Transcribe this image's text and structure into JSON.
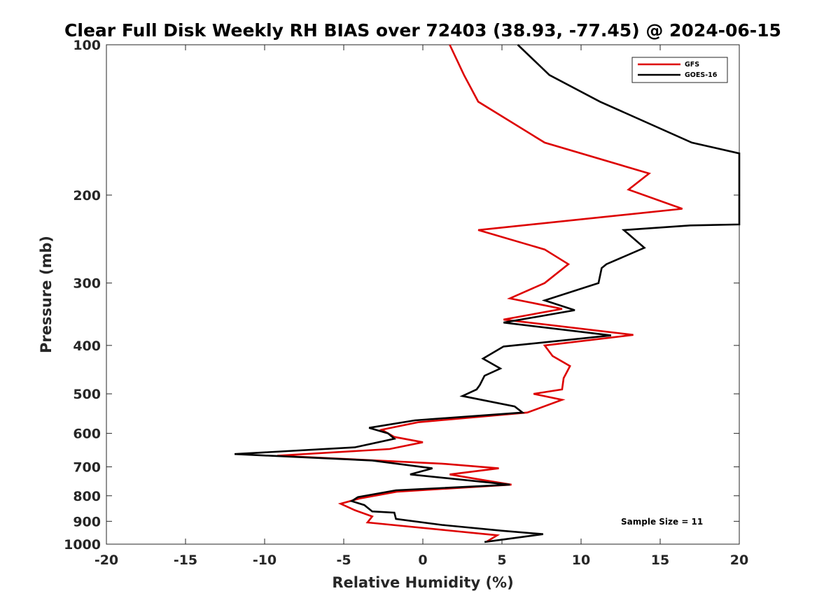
{
  "chart_data": {
    "type": "line",
    "title": "Clear Full Disk Weekly RH BIAS over 72403 (38.93, -77.45) @ 2024-06-15",
    "xlabel": "Relative Humidity (%)",
    "ylabel": "Pressure (mb)",
    "xlim": [
      -20,
      20
    ],
    "ylim": [
      1000,
      100
    ],
    "y_scale": "log",
    "y_reversed": true,
    "x_ticks": [
      -20,
      -15,
      -10,
      -5,
      0,
      5,
      10,
      15,
      20
    ],
    "y_ticks": [
      100,
      200,
      300,
      400,
      500,
      600,
      700,
      800,
      900,
      1000
    ],
    "grid": false,
    "legend_position": "top-right",
    "annotation": "Sample Size = 11",
    "series": [
      {
        "name": "GFS",
        "color": "#dd0000",
        "points": [
          [
            1.7,
            100
          ],
          [
            2.6,
            115
          ],
          [
            3.5,
            130
          ],
          [
            7.7,
            157
          ],
          [
            14.3,
            181
          ],
          [
            13.0,
            195
          ],
          [
            16.4,
            213
          ],
          [
            3.5,
            235
          ],
          [
            7.7,
            257
          ],
          [
            9.2,
            275
          ],
          [
            7.7,
            300
          ],
          [
            5.5,
            322
          ],
          [
            8.8,
            338
          ],
          [
            5.1,
            355
          ],
          [
            13.3,
            381
          ],
          [
            7.7,
            400
          ],
          [
            8.2,
            420
          ],
          [
            9.3,
            440
          ],
          [
            8.9,
            465
          ],
          [
            8.8,
            490
          ],
          [
            7.0,
            500
          ],
          [
            8.8,
            514
          ],
          [
            6.6,
            545
          ],
          [
            -0.3,
            570
          ],
          [
            -2.6,
            590
          ],
          [
            -1.8,
            610
          ],
          [
            0.0,
            625
          ],
          [
            -2.1,
            645
          ],
          [
            -9.2,
            665
          ],
          [
            1.2,
            690
          ],
          [
            4.8,
            705
          ],
          [
            1.7,
            725
          ],
          [
            3.9,
            745
          ],
          [
            5.6,
            760
          ],
          [
            -1.6,
            785
          ],
          [
            -4.0,
            810
          ],
          [
            -5.2,
            830
          ],
          [
            -4.3,
            855
          ],
          [
            -3.2,
            880
          ],
          [
            -3.5,
            905
          ],
          [
            4.7,
            960
          ],
          [
            4.0,
            990
          ]
        ]
      },
      {
        "name": "GOES-16",
        "color": "#000000",
        "points": [
          [
            6.0,
            100
          ],
          [
            8.0,
            115
          ],
          [
            11.2,
            130
          ],
          [
            17.0,
            157
          ],
          [
            20.0,
            165
          ],
          [
            20.0,
            229
          ],
          [
            16.9,
            230
          ],
          [
            12.7,
            235
          ],
          [
            14.0,
            255
          ],
          [
            11.6,
            275
          ],
          [
            11.3,
            280
          ],
          [
            11.1,
            300
          ],
          [
            7.7,
            325
          ],
          [
            9.6,
            340
          ],
          [
            5.1,
            360
          ],
          [
            11.9,
            382
          ],
          [
            5.1,
            402
          ],
          [
            3.8,
            425
          ],
          [
            4.9,
            445
          ],
          [
            3.9,
            460
          ],
          [
            3.6,
            480
          ],
          [
            3.4,
            490
          ],
          [
            2.5,
            505
          ],
          [
            5.8,
            530
          ],
          [
            6.3,
            545
          ],
          [
            -0.5,
            565
          ],
          [
            -3.4,
            585
          ],
          [
            -2.2,
            600
          ],
          [
            -1.8,
            615
          ],
          [
            -4.3,
            640
          ],
          [
            -11.9,
            660
          ],
          [
            -3.2,
            680
          ],
          [
            0.6,
            705
          ],
          [
            -0.8,
            725
          ],
          [
            5.5,
            760
          ],
          [
            -1.7,
            780
          ],
          [
            -4.1,
            805
          ],
          [
            -4.5,
            820
          ],
          [
            -3.7,
            835
          ],
          [
            -3.2,
            860
          ],
          [
            -1.8,
            865
          ],
          [
            -1.7,
            890
          ],
          [
            1.2,
            915
          ],
          [
            5.0,
            940
          ],
          [
            7.6,
            955
          ],
          [
            6.0,
            970
          ],
          [
            3.9,
            990
          ]
        ]
      }
    ]
  }
}
